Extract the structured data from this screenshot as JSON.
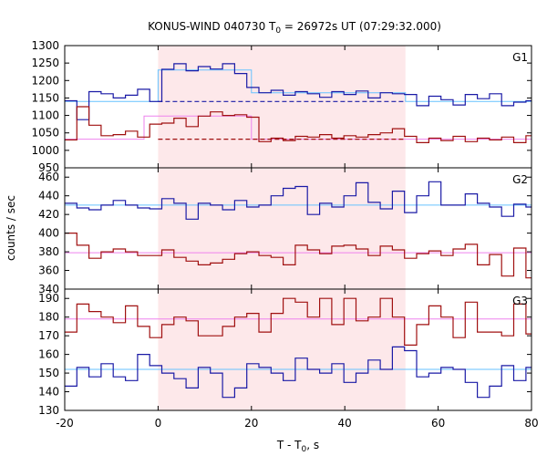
{
  "chart_data": {
    "type": "line",
    "title_main": "KONUS-WIND 040730 T",
    "title_sub": "0",
    "title_rest": " = 26972s UT (07:29:32.000)",
    "xlabel_main": "T - T",
    "xlabel_sub": "0",
    "xlabel_rest": ", s",
    "ylabel": "counts / sec",
    "xlim": [
      -20,
      80
    ],
    "xticks": [
      "-20",
      "0",
      "20",
      "40",
      "60",
      "80"
    ],
    "shaded_interval": [
      0,
      53
    ],
    "colors": {
      "shade": "#fde8ea",
      "blue": "#1a1aa6",
      "red": "#a01010",
      "bg_blue": "#66c2ff",
      "bg_red": "#ee82ee",
      "frame": "#000000"
    },
    "panels": [
      {
        "label": "G1",
        "ylim": [
          950,
          1300
        ],
        "yticks": [
          "950",
          "1000",
          "1050",
          "1100",
          "1150",
          "1200",
          "1250",
          "1300"
        ],
        "series": [
          {
            "color_key": "blue",
            "edges": [
              -20,
              -17.4,
              -14.8,
              -12.2,
              -9.6,
              -7,
              -4.4,
              -1.8,
              0.8,
              3.4,
              6,
              8.6,
              11.2,
              13.8,
              16.4,
              19,
              21.6,
              24.2,
              26.8,
              29.4,
              32,
              34.6,
              37.2,
              39.8,
              42.4,
              45,
              47.6,
              50.2,
              52.8,
              55.4,
              58,
              60.6,
              63.2,
              65.8,
              68.4,
              71,
              73.6,
              76.2,
              78.8,
              80
            ],
            "values": [
              1142,
              1088,
              1168,
              1162,
              1150,
              1158,
              1175,
              1140,
              1232,
              1248,
              1228,
              1240,
              1233,
              1248,
              1220,
              1180,
              1165,
              1172,
              1158,
              1168,
              1162,
              1152,
              1168,
              1160,
              1170,
              1150,
              1165,
              1162,
              1160,
              1128,
              1155,
              1145,
              1130,
              1160,
              1148,
              1162,
              1128,
              1138,
              1142
            ]
          },
          {
            "color_key": "red",
            "edges": [
              -20,
              -17.4,
              -14.8,
              -12.2,
              -9.6,
              -7,
              -4.4,
              -1.8,
              0.8,
              3.4,
              6,
              8.6,
              11.2,
              13.8,
              16.4,
              19,
              21.6,
              24.2,
              26.8,
              29.4,
              32,
              34.6,
              37.2,
              39.8,
              42.4,
              45,
              47.6,
              50.2,
              52.8,
              55.4,
              58,
              60.6,
              63.2,
              65.8,
              68.4,
              71,
              73.6,
              76.2,
              78.8,
              80
            ],
            "values": [
              1030,
              1125,
              1072,
              1042,
              1045,
              1055,
              1038,
              1075,
              1078,
              1092,
              1068,
              1098,
              1110,
              1100,
              1102,
              1095,
              1025,
              1035,
              1028,
              1040,
              1038,
              1045,
              1035,
              1042,
              1038,
              1045,
              1050,
              1062,
              1040,
              1022,
              1035,
              1028,
              1040,
              1025,
              1035,
              1030,
              1038,
              1022,
              1042
            ]
          }
        ],
        "background_lines": [
          {
            "color_key": "bg_blue",
            "x": [
              -20,
              0,
              0,
              20,
              20,
              53,
              53,
              80
            ],
            "y": [
              1140,
              1140,
              1230,
              1230,
              1165,
              1165,
              1140,
              1140
            ]
          },
          {
            "color_key": "bg_red",
            "x": [
              -20,
              -3,
              -3,
              20,
              20,
              80
            ],
            "y": [
              1032,
              1032,
              1098,
              1098,
              1032,
              1032
            ]
          }
        ],
        "dashed_lines": [
          {
            "color_key": "blue",
            "x": [
              0,
              53
            ],
            "y": [
              1140,
              1140
            ]
          },
          {
            "color_key": "red",
            "x": [
              0,
              53
            ],
            "y": [
              1032,
              1032
            ]
          }
        ]
      },
      {
        "label": "G2",
        "ylim": [
          340,
          470
        ],
        "yticks": [
          "340",
          "360",
          "380",
          "400",
          "420",
          "440",
          "460"
        ],
        "series": [
          {
            "color_key": "blue",
            "edges": [
              -20,
              -17.4,
              -14.8,
              -12.2,
              -9.6,
              -7,
              -4.4,
              -1.8,
              0.8,
              3.4,
              6,
              8.6,
              11.2,
              13.8,
              16.4,
              19,
              21.6,
              24.2,
              26.8,
              29.4,
              32,
              34.6,
              37.2,
              39.8,
              42.4,
              45,
              47.6,
              50.2,
              52.8,
              55.4,
              58,
              60.6,
              63.2,
              65.8,
              68.4,
              71,
              73.6,
              76.2,
              78.8,
              80
            ],
            "values": [
              432,
              427,
              425,
              430,
              435,
              430,
              427,
              426,
              437,
              432,
              415,
              432,
              430,
              425,
              435,
              428,
              430,
              440,
              448,
              450,
              420,
              432,
              428,
              440,
              454,
              433,
              426,
              445,
              422,
              440,
              455,
              430,
              430,
              442,
              432,
              428,
              418,
              431,
              428
            ]
          },
          {
            "color_key": "red",
            "edges": [
              -20,
              -17.4,
              -14.8,
              -12.2,
              -9.6,
              -7,
              -4.4,
              -1.8,
              0.8,
              3.4,
              6,
              8.6,
              11.2,
              13.8,
              16.4,
              19,
              21.6,
              24.2,
              26.8,
              29.4,
              32,
              34.6,
              37.2,
              39.8,
              42.4,
              45,
              47.6,
              50.2,
              52.8,
              55.4,
              58,
              60.6,
              63.2,
              65.8,
              68.4,
              71,
              73.6,
              76.2,
              78.8,
              80
            ],
            "values": [
              400,
              387,
              373,
              380,
              383,
              380,
              376,
              376,
              382,
              374,
              370,
              366,
              368,
              372,
              378,
              380,
              376,
              374,
              366,
              387,
              382,
              378,
              386,
              387,
              383,
              376,
              386,
              382,
              373,
              378,
              381,
              376,
              383,
              388,
              366,
              377,
              354,
              384,
              352
            ]
          }
        ],
        "background_lines": [
          {
            "color_key": "bg_blue",
            "x": [
              -20,
              80
            ],
            "y": [
              430,
              430
            ]
          },
          {
            "color_key": "bg_red",
            "x": [
              -20,
              80
            ],
            "y": [
              379,
              379
            ]
          }
        ],
        "dashed_lines": []
      },
      {
        "label": "G3",
        "ylim": [
          130,
          195
        ],
        "yticks": [
          "130",
          "140",
          "150",
          "160",
          "170",
          "180",
          "190"
        ],
        "series": [
          {
            "color_key": "blue",
            "edges": [
              -20,
              -17.4,
              -14.8,
              -12.2,
              -9.6,
              -7,
              -4.4,
              -1.8,
              0.8,
              3.4,
              6,
              8.6,
              11.2,
              13.8,
              16.4,
              19,
              21.6,
              24.2,
              26.8,
              29.4,
              32,
              34.6,
              37.2,
              39.8,
              42.4,
              45,
              47.6,
              50.2,
              52.8,
              55.4,
              58,
              60.6,
              63.2,
              65.8,
              68.4,
              71,
              73.6,
              76.2,
              78.8,
              80
            ],
            "values": [
              143,
              153,
              148,
              155,
              148,
              146,
              160,
              154,
              150,
              147,
              142,
              153,
              150,
              137,
              142,
              155,
              153,
              150,
              146,
              158,
              152,
              150,
              155,
              145,
              150,
              157,
              152,
              164,
              162,
              148,
              150,
              153,
              152,
              145,
              137,
              143,
              154,
              146,
              153
            ]
          },
          {
            "color_key": "red",
            "edges": [
              -20,
              -17.4,
              -14.8,
              -12.2,
              -9.6,
              -7,
              -4.4,
              -1.8,
              0.8,
              3.4,
              6,
              8.6,
              11.2,
              13.8,
              16.4,
              19,
              21.6,
              24.2,
              26.8,
              29.4,
              32,
              34.6,
              37.2,
              39.8,
              42.4,
              45,
              47.6,
              50.2,
              52.8,
              55.4,
              58,
              60.6,
              63.2,
              65.8,
              68.4,
              71,
              73.6,
              76.2,
              78.8,
              80
            ],
            "values": [
              172,
              187,
              183,
              180,
              177,
              186,
              175,
              169,
              176,
              180,
              178,
              170,
              170,
              175,
              180,
              182,
              172,
              182,
              190,
              188,
              180,
              190,
              176,
              190,
              178,
              180,
              190,
              180,
              165,
              176,
              186,
              180,
              169,
              188,
              172,
              172,
              170,
              187,
              171
            ]
          }
        ],
        "background_lines": [
          {
            "color_key": "bg_blue",
            "x": [
              -20,
              80
            ],
            "y": [
              152,
              152
            ]
          },
          {
            "color_key": "bg_red",
            "x": [
              -20,
              80
            ],
            "y": [
              179,
              179
            ]
          }
        ],
        "dashed_lines": []
      }
    ]
  }
}
